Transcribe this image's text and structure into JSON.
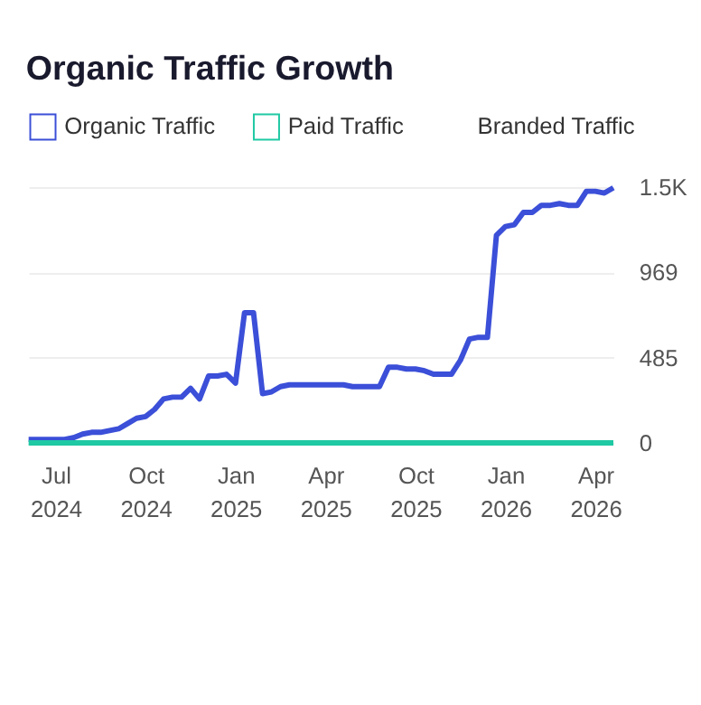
{
  "chart_data": {
    "type": "line",
    "title": "Organic Traffic Growth",
    "categories": [
      null,
      null,
      null,
      "Jul 2024",
      null,
      null,
      null,
      null,
      null,
      null,
      null,
      null,
      null,
      "Oct 2024",
      null,
      null,
      null,
      null,
      null,
      null,
      null,
      null,
      null,
      "Jan 2025",
      null,
      null,
      null,
      null,
      null,
      null,
      null,
      null,
      null,
      "Apr 2025",
      null,
      null,
      null,
      null,
      null,
      null,
      null,
      null,
      null,
      "Oct 2025",
      null,
      null,
      null,
      null,
      null,
      null,
      null,
      null,
      null,
      "Jan 2026",
      null,
      null,
      null,
      null,
      null,
      null,
      null,
      null,
      null,
      "Apr 2026",
      null,
      null
    ],
    "ylim": [
      0,
      1454
    ],
    "yticks": [
      0,
      485,
      969,
      {
        "value": 1454,
        "label": "1.5K"
      }
    ],
    "grid": "y",
    "legend": "top left",
    "marker": "none",
    "line_style": "solid",
    "series": [
      {
        "name": "Organic Traffic",
        "color": "#3b4fd8",
        "values": [
          20,
          20,
          20,
          20,
          20,
          30,
          50,
          60,
          60,
          70,
          80,
          110,
          140,
          150,
          190,
          250,
          260,
          260,
          310,
          250,
          380,
          380,
          390,
          340,
          740,
          740,
          280,
          290,
          320,
          330,
          330,
          330,
          330,
          330,
          330,
          330,
          320,
          320,
          320,
          320,
          430,
          430,
          420,
          420,
          410,
          390,
          390,
          390,
          470,
          590,
          600,
          600,
          1180,
          1230,
          1240,
          1310,
          1310,
          1350,
          1350,
          1360,
          1350,
          1350,
          1430,
          1430,
          1420,
          1450
        ]
      },
      {
        "name": "Paid Traffic",
        "color": "#1fc9a3",
        "values": [
          0,
          0,
          0,
          0,
          0,
          0,
          0,
          0,
          0,
          0,
          0,
          0,
          0,
          0,
          0,
          0,
          0,
          0,
          0,
          0,
          0,
          0,
          0,
          0,
          0,
          0,
          0,
          0,
          0,
          0,
          0,
          0,
          0,
          0,
          0,
          0,
          0,
          0,
          0,
          0,
          0,
          0,
          0,
          0,
          0,
          0,
          0,
          0,
          0,
          0,
          0,
          0,
          0,
          0,
          0,
          0,
          0,
          0,
          0,
          0,
          0,
          0,
          0,
          0,
          0,
          0
        ]
      },
      {
        "name": "Branded Traffic",
        "values": [
          null,
          null,
          null,
          null,
          null,
          null,
          null,
          null,
          null,
          null,
          null,
          null,
          null,
          null,
          null,
          null,
          null,
          null,
          null,
          null,
          null,
          null,
          null,
          null,
          null,
          null,
          null,
          null,
          null,
          null,
          null,
          null,
          null,
          null,
          null,
          null,
          null,
          null,
          null,
          null,
          null,
          null,
          null,
          null,
          null,
          null,
          null,
          null,
          null,
          null,
          null,
          null,
          null,
          null,
          null,
          null,
          null,
          null,
          null,
          null,
          null,
          null,
          null,
          null,
          null,
          null
        ]
      }
    ]
  }
}
